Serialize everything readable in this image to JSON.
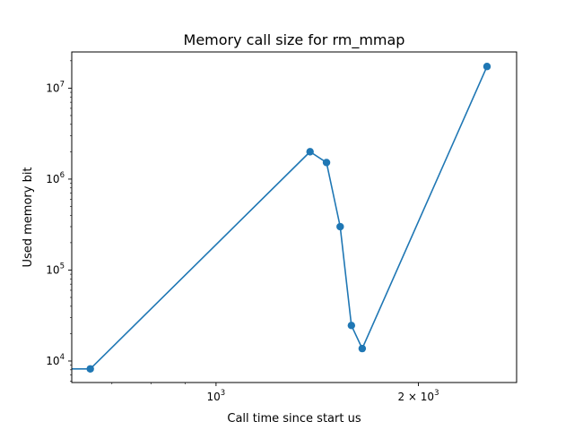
{
  "chart_data": {
    "type": "line",
    "title": "Memory call size for rm_mmap",
    "xlabel": "Call time since start us",
    "ylabel": "Used memory bit",
    "x_scale": "log",
    "y_scale": "log",
    "xlim": [
      610,
      2800
    ],
    "ylim": [
      5800,
      25000000
    ],
    "grid": false,
    "series": [
      {
        "color": "#1f77b4",
        "marker": "circle",
        "x": [
          480,
          650,
          1380,
          1460,
          1530,
          1590,
          1650,
          2530
        ],
        "y": [
          8192,
          8192,
          2000000,
          1520000,
          300000,
          24600,
          13700,
          17300000
        ]
      }
    ],
    "x_tick_labels": [
      {
        "value": 1000,
        "base": "10",
        "exp": "3"
      },
      {
        "value": 2000,
        "base": "2 × 10",
        "exp": "3"
      }
    ],
    "x_minor_ticks": [
      700,
      800,
      900
    ],
    "y_tick_labels": [
      {
        "value": 10000,
        "base": "10",
        "exp": "4"
      },
      {
        "value": 100000,
        "base": "10",
        "exp": "5"
      },
      {
        "value": 1000000,
        "base": "10",
        "exp": "6"
      },
      {
        "value": 10000000,
        "base": "10",
        "exp": "7"
      }
    ]
  }
}
